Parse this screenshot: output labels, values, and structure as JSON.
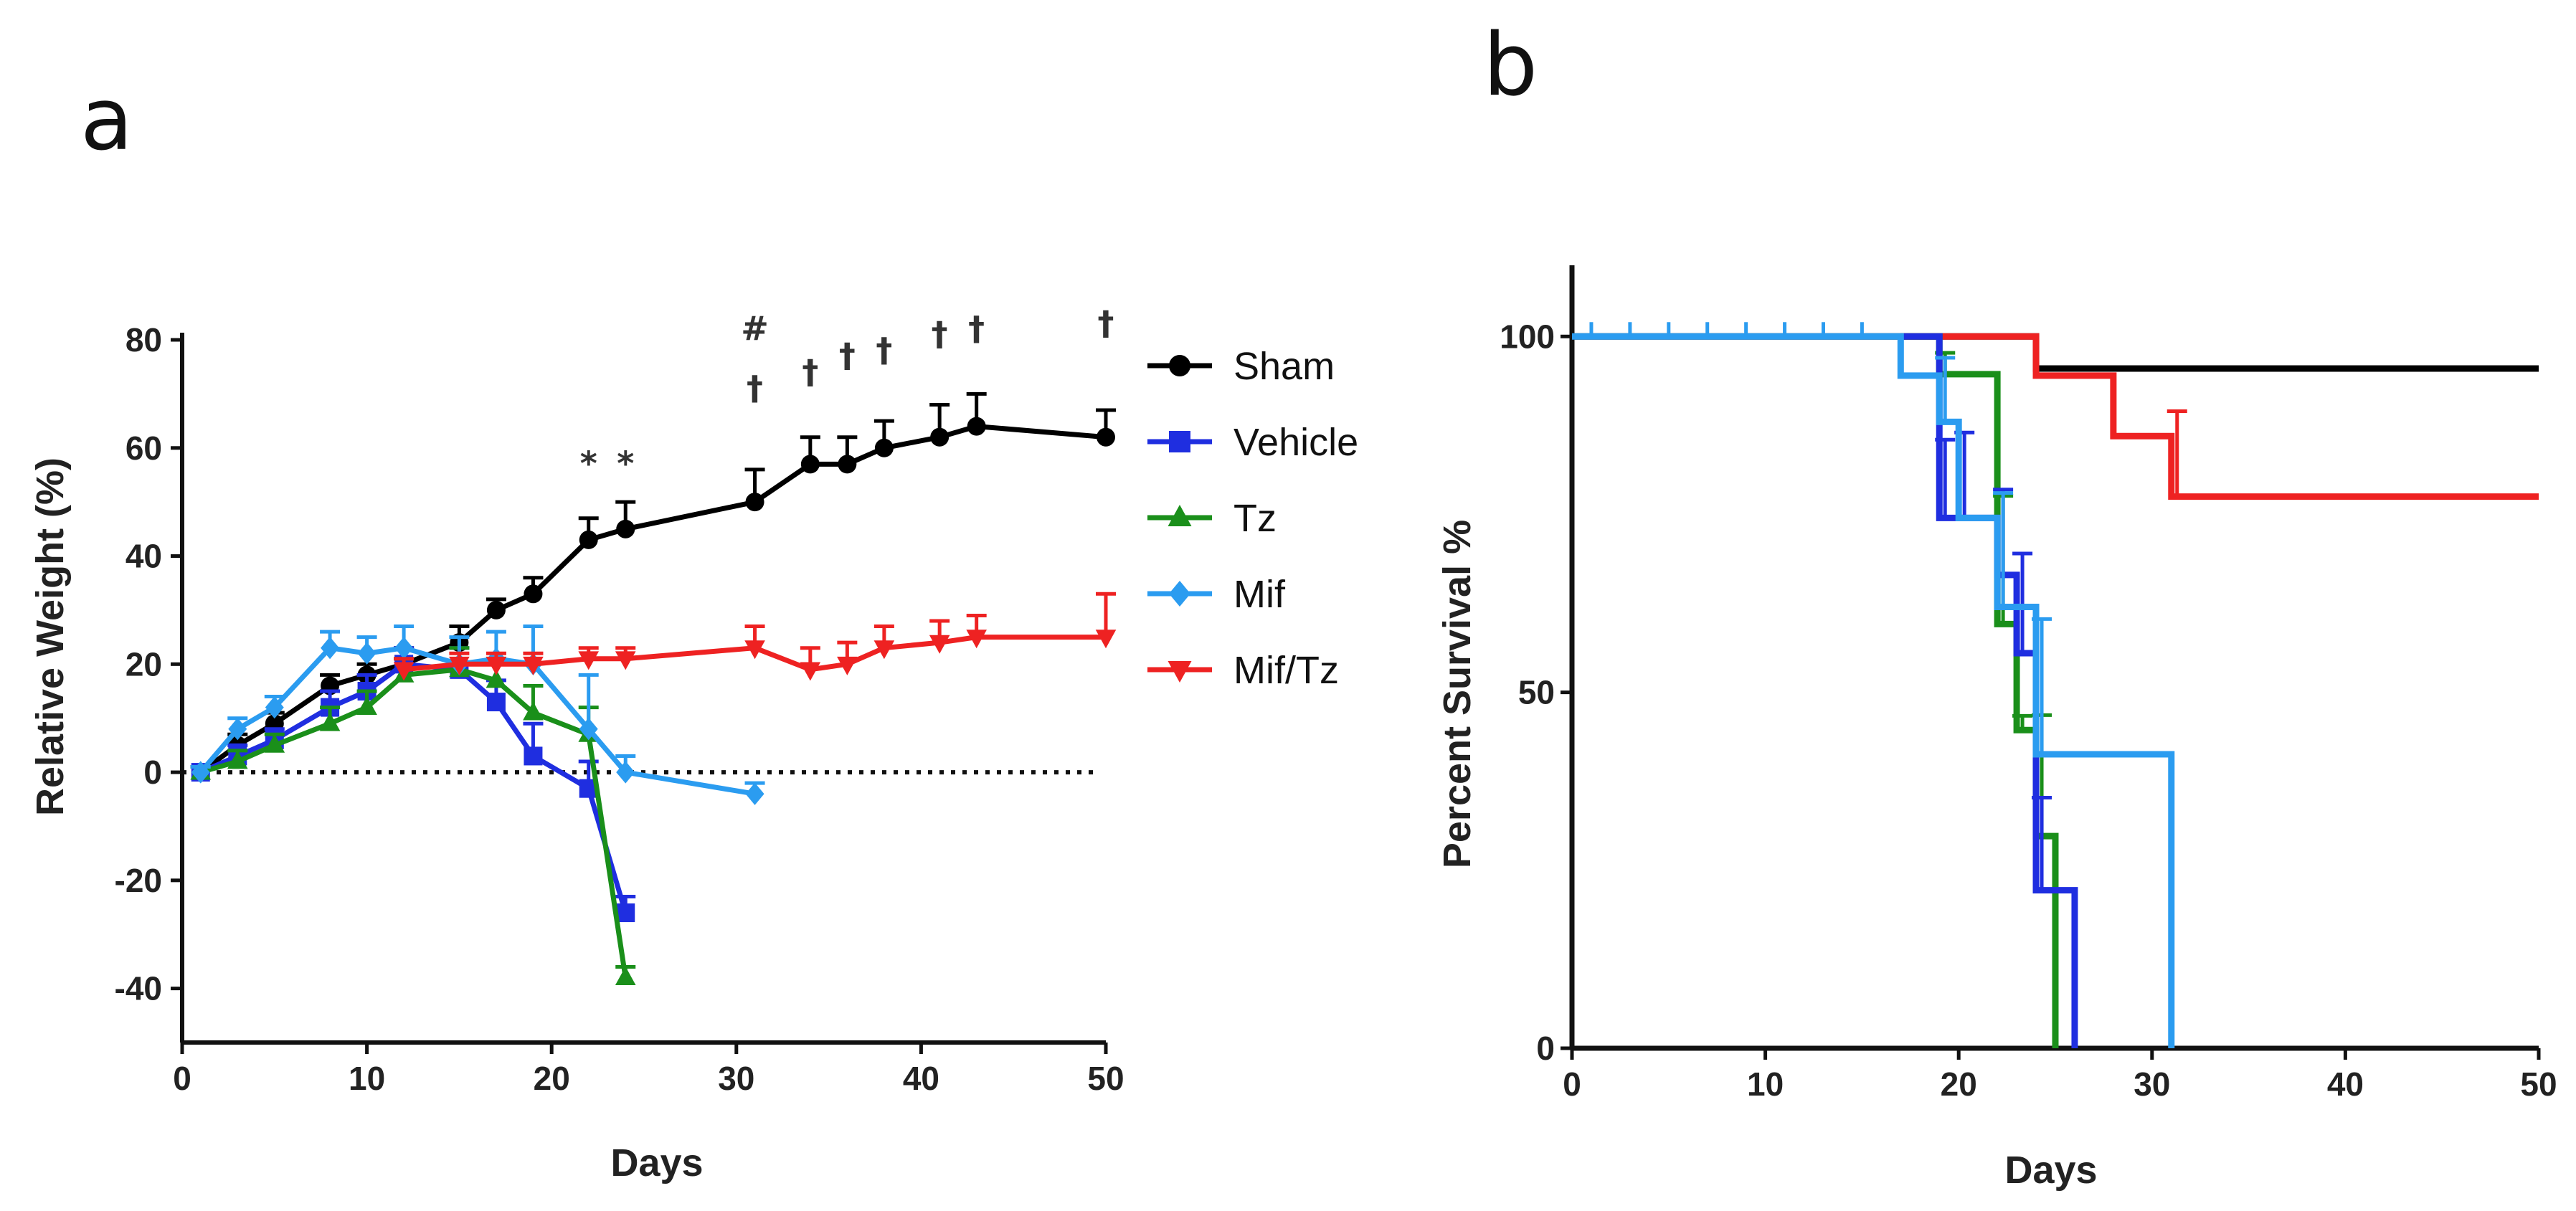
{
  "panels": {
    "a": "a",
    "b": "b"
  },
  "chart_data": [
    {
      "id": "a",
      "type": "line",
      "title": "",
      "xlabel": "Days",
      "ylabel": "Relative Weight (%)",
      "xlim": [
        0,
        50
      ],
      "ylim": [
        -50,
        80
      ],
      "xticks": [
        "0",
        "10",
        "20",
        "30",
        "40",
        "50"
      ],
      "yticks": [
        "-40",
        "-20",
        "0",
        "20",
        "40",
        "60",
        "80"
      ],
      "reference_line": 0,
      "legend_position": "right",
      "series": [
        {
          "name": "Sham",
          "color": "#000000",
          "marker": "circle",
          "x": [
            1,
            3,
            5,
            8,
            10,
            12,
            15,
            17,
            19,
            22,
            24,
            31,
            34,
            36,
            38,
            41,
            43,
            50
          ],
          "y": [
            0,
            5,
            9,
            16,
            18,
            20,
            24,
            30,
            33,
            43,
            45,
            50,
            57,
            57,
            60,
            62,
            64,
            62
          ],
          "err": [
            1,
            2,
            2,
            2,
            2,
            3,
            3,
            2,
            3,
            4,
            5,
            6,
            5,
            5,
            5,
            6,
            6,
            5
          ]
        },
        {
          "name": "Vehicle",
          "color": "#1f2ee0",
          "marker": "square",
          "x": [
            1,
            3,
            5,
            8,
            10,
            12,
            15,
            17,
            19,
            22,
            24
          ],
          "y": [
            0,
            3,
            6,
            12,
            15,
            20,
            19,
            13,
            3,
            -3,
            -26
          ],
          "err": [
            1,
            2,
            2,
            3,
            3,
            3,
            4,
            4,
            6,
            5,
            3
          ]
        },
        {
          "name": "Tz",
          "color": "#1a8f1a",
          "marker": "triangle",
          "x": [
            1,
            3,
            5,
            8,
            10,
            12,
            15,
            17,
            19,
            22,
            24
          ],
          "y": [
            0,
            2,
            5,
            9,
            12,
            18,
            19,
            17,
            11,
            7,
            -38
          ],
          "err": [
            1,
            2,
            2,
            3,
            3,
            3,
            4,
            4,
            5,
            5,
            2
          ]
        },
        {
          "name": "Mif",
          "color": "#2b9cf0",
          "marker": "diamond",
          "x": [
            1,
            3,
            5,
            8,
            10,
            12,
            15,
            17,
            19,
            22,
            24,
            31
          ],
          "y": [
            0,
            8,
            12,
            23,
            22,
            23,
            20,
            21,
            20,
            8,
            0,
            -4
          ],
          "err": [
            1,
            2,
            2,
            3,
            3,
            4,
            5,
            5,
            7,
            10,
            3,
            2
          ]
        },
        {
          "name": "Mif/Tz",
          "color": "#ee2222",
          "marker": "triangle-down",
          "x": [
            12,
            15,
            17,
            19,
            22,
            24,
            31,
            34,
            36,
            38,
            41,
            43,
            50
          ],
          "y": [
            19,
            20,
            20,
            20,
            21,
            21,
            23,
            19,
            20,
            23,
            24,
            25,
            25
          ],
          "err": [
            2,
            2,
            2,
            2,
            2,
            2,
            4,
            4,
            4,
            4,
            4,
            4,
            8
          ]
        }
      ],
      "annotations": [
        {
          "text": "*",
          "x": 22,
          "y": 55
        },
        {
          "text": "*",
          "x": 24,
          "y": 55
        },
        {
          "text": "#",
          "x": 31,
          "y": 80
        },
        {
          "text": "†",
          "x": 31,
          "y": 69
        },
        {
          "text": "†",
          "x": 34,
          "y": 72
        },
        {
          "text": "†",
          "x": 36,
          "y": 75
        },
        {
          "text": "†",
          "x": 38,
          "y": 76
        },
        {
          "text": "†",
          "x": 41,
          "y": 79
        },
        {
          "text": "†",
          "x": 43,
          "y": 80
        },
        {
          "text": "†",
          "x": 50,
          "y": 81
        }
      ]
    },
    {
      "id": "b",
      "type": "line",
      "subtype": "survival-step",
      "title": "",
      "xlabel": "Days",
      "ylabel": "Percent Survival %",
      "xlim": [
        0,
        50
      ],
      "ylim": [
        0,
        110
      ],
      "xticks": [
        "0",
        "10",
        "20",
        "30",
        "40",
        "50"
      ],
      "yticks": [
        "0",
        "50",
        "100"
      ],
      "series": [
        {
          "name": "Sham",
          "color": "#000000",
          "steps": [
            [
              0,
              100
            ],
            [
              24,
              95.5
            ],
            [
              50,
              95.5
            ]
          ],
          "err": []
        },
        {
          "name": "Mif/Tz",
          "color": "#ee2222",
          "steps": [
            [
              17,
              100
            ],
            [
              24,
              94.5
            ],
            [
              28,
              86
            ],
            [
              31,
              77.5
            ],
            [
              50,
              77.5
            ]
          ],
          "err": [
            [
              31,
              77.5,
              12
            ]
          ]
        },
        {
          "name": "Tz",
          "color": "#1a8f1a",
          "steps": [
            [
              17,
              100
            ],
            [
              19,
              94.7
            ],
            [
              22,
              59.6
            ],
            [
              23,
              44.7
            ],
            [
              24,
              29.8
            ],
            [
              25,
              0
            ]
          ],
          "err": [
            [
              19,
              94.7,
              3
            ],
            [
              22,
              59.6,
              18
            ],
            [
              23,
              44.7,
              2
            ],
            [
              24,
              29.8,
              17
            ]
          ]
        },
        {
          "name": "Vehicle",
          "color": "#1f2ee0",
          "steps": [
            [
              17,
              100
            ],
            [
              19,
              74.5
            ],
            [
              22,
              66.5
            ],
            [
              23,
              55.5
            ],
            [
              24,
              22.2
            ],
            [
              26,
              0
            ]
          ],
          "err": [
            [
              19,
              74.5,
              11
            ],
            [
              20,
              74.5,
              12
            ],
            [
              22,
              66.5,
              12
            ],
            [
              23,
              55.5,
              14
            ],
            [
              24,
              22.2,
              13
            ]
          ]
        },
        {
          "name": "Mif",
          "color": "#2b9cf0",
          "steps": [
            [
              0,
              100
            ],
            [
              17,
              94.5
            ],
            [
              19,
              88
            ],
            [
              20,
              74.5
            ],
            [
              22,
              62
            ],
            [
              24,
              41.3
            ],
            [
              31,
              0
            ]
          ],
          "err": [
            [
              19,
              88,
              9
            ],
            [
              22,
              62,
              16
            ],
            [
              24,
              41.3,
              19
            ]
          ]
        }
      ],
      "censor_ticks": [
        1,
        3,
        5,
        7,
        9,
        11,
        13,
        15
      ]
    }
  ]
}
